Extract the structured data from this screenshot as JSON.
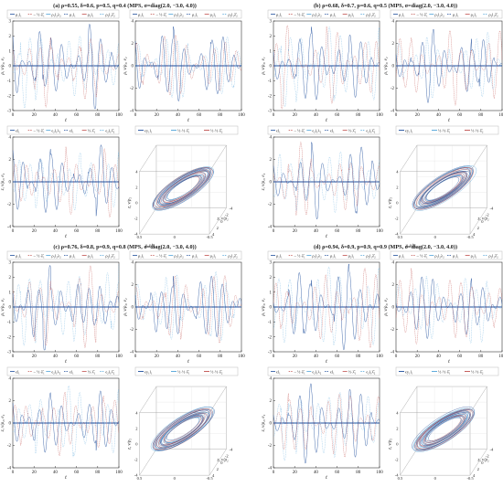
{
  "chart_data": [
    {
      "type": "figure-group",
      "title": "(a) ρ=0.55, δ=0.6, p=0.5, q=0.4 (MPS, σ=diag(2.0, −3.0, 4.0))",
      "panels": [
        {
          "type": "line",
          "xlabel": "t",
          "ylabel": "ρ, ν/ρ₂, e₁",
          "xlim": [
            0,
            100
          ],
          "ylim": [
            -3,
            3
          ],
          "xticks": [
            "0",
            "20",
            "40",
            "60",
            "80",
            "100"
          ],
          "yticks": [
            "3",
            "2",
            "1",
            "0",
            "-1",
            "-2",
            "-3"
          ],
          "legend": [
            "ρ₁l₁",
            "– ½·λ̂₁",
            "ρ₁l₂λ₂",
            "ρ₁l₁",
            "ρ₂l₁",
            "ρ₂l₁λ̂₂"
          ]
        },
        {
          "type": "line",
          "xlabel": "t",
          "ylabel": "ρ, ν/ρ₂, e₂",
          "xlim": [
            0,
            100
          ],
          "ylim": [
            -4,
            4
          ],
          "xticks": [
            "0",
            "20",
            "40",
            "60",
            "80",
            "100"
          ],
          "yticks": [
            "4",
            "2",
            "0",
            "-2",
            "-4"
          ],
          "legend": [
            "ρ₁l₁",
            "– ½·λ̂₁",
            "ρ₁l₂λ₂",
            "ρ₁l₁",
            "ρ₂l₁",
            "ρ₂l₁λ̂₂"
          ]
        },
        {
          "type": "line",
          "xlabel": "t",
          "ylabel": "z, ν/ρ₂, e₃",
          "xlim": [
            0,
            100
          ],
          "ylim": [
            -4,
            4
          ],
          "xticks": [
            "0",
            "20",
            "40",
            "60",
            "80",
            "100"
          ],
          "yticks": [
            "4",
            "2",
            "0",
            "-2",
            "-4"
          ],
          "legend": [
            "ϵl₁",
            "– ½·λ̂₁",
            "ϵ₂l₁λ₂",
            "ϵl₁",
            "½·λ̂₁",
            "ϵ₂l₁λ̂₂"
          ]
        },
        {
          "type": "3d-phase",
          "xlabel": "y, ν/ρ₂",
          "ylabel": "z, ν/ρ₂",
          "zlabel": "z, ν/ρ₂",
          "legend": [
            "ϵy₁l₁",
            "½·½·λ̂₁",
            "½·½·λ̂₂"
          ],
          "x_ticks": [
            "0.5",
            "0",
            "-0.5"
          ],
          "y_ticks": [
            "4",
            "2",
            "0",
            "-2",
            "-4"
          ],
          "z_ticks": [
            "4",
            "2",
            "0",
            "-2",
            "-4"
          ]
        }
      ]
    },
    {
      "type": "figure-group",
      "title": "(b) ρ=0.68, δ=0.7, p=0.6, q=0.5 (MPS, σ=diag(2.0, −3.0, 4.0))",
      "panels": [
        {
          "type": "line",
          "xlabel": "t",
          "ylabel": "ρ, ν/ρ₂, e₁",
          "xlim": [
            0,
            100
          ],
          "ylim": [
            -3,
            3
          ],
          "xticks": [
            "0",
            "20",
            "40",
            "60",
            "80",
            "100"
          ],
          "yticks": [
            "3",
            "2",
            "1",
            "0",
            "-1",
            "-2",
            "-3"
          ],
          "legend": [
            "ρ₁l₁",
            "– ½·λ̂₁",
            "ρ₁l₂λ₂",
            "ρ₁l₁",
            "ρ₂l₁",
            "ρ₂l₁λ̂₂"
          ]
        },
        {
          "type": "line",
          "xlabel": "t",
          "ylabel": "ρ, ν/ρ₂, e₂",
          "xlim": [
            0,
            100
          ],
          "ylim": [
            -4,
            4
          ],
          "xticks": [
            "0",
            "20",
            "40",
            "60",
            "80",
            "100"
          ],
          "yticks": [
            "4",
            "2",
            "0",
            "-2",
            "-4"
          ],
          "legend": [
            "ρ₁l₁",
            "– ½·λ̂₁",
            "ρ₁l₂λ₂",
            "ρ₁l₁",
            "ρ₂l₁",
            "ρ₂l₁λ̂₂"
          ]
        },
        {
          "type": "line",
          "xlabel": "t",
          "ylabel": "z, ν/ρ₂, e₃",
          "xlim": [
            0,
            100
          ],
          "ylim": [
            -4,
            4
          ],
          "xticks": [
            "0",
            "20",
            "40",
            "60",
            "80",
            "100"
          ],
          "yticks": [
            "4",
            "2",
            "0",
            "-2",
            "-4"
          ],
          "legend": [
            "ϵl₁",
            "– ½·λ̂₁",
            "ϵ₂l₁λ₂",
            "ϵl₁",
            "½·λ̂₁",
            "ϵ₂l₁λ̂₂"
          ]
        },
        {
          "type": "3d-phase",
          "xlabel": "y, ν/ρ₂",
          "ylabel": "z, ν/ρ₂",
          "zlabel": "z, ν/ρ₂",
          "legend": [
            "ϵy₁l₁",
            "½·½·λ̂₁",
            "½·½·λ̂₂"
          ],
          "x_ticks": [
            "0.5",
            "0",
            "-0.5"
          ],
          "y_ticks": [
            "4",
            "2",
            "0",
            "-2",
            "-4"
          ],
          "z_ticks": [
            "4",
            "2",
            "0",
            "-2",
            "-4"
          ]
        }
      ]
    },
    {
      "type": "figure-group",
      "title": "(c) ρ=0.76, δ=0.8, p=0.9, q=0.8 (MPS, σ=diag(2.0, −3.0, 4.0))",
      "panels": [
        {
          "type": "line",
          "xlabel": "t",
          "ylabel": "ρ, ν/ρ₂, e₁",
          "xlim": [
            0,
            100
          ],
          "ylim": [
            -3,
            3
          ],
          "xticks": [
            "0",
            "20",
            "40",
            "60",
            "80",
            "100"
          ],
          "yticks": [
            "3",
            "2",
            "1",
            "0",
            "-1",
            "-2",
            "-3"
          ],
          "legend": [
            "ρ₁l₁",
            "– ½·λ̂₁",
            "ρ₁l₂λ₂",
            "ρ₁l₁",
            "ρ₂l₁",
            "ρ₂l₁λ̂₂"
          ]
        },
        {
          "type": "line",
          "xlabel": "t",
          "ylabel": "ρ, ν/ρ₂, e₂",
          "xlim": [
            0,
            100
          ],
          "ylim": [
            -4,
            4
          ],
          "xticks": [
            "0",
            "20",
            "40",
            "60",
            "80",
            "100"
          ],
          "yticks": [
            "4",
            "2",
            "0",
            "-2",
            "-4"
          ],
          "legend": [
            "ρ₁l₁",
            "– ½·λ̂₁",
            "ρ₁l₂λ₂",
            "ρ₁l₁",
            "ρ₂l₁",
            "ρ₂l₁λ̂₂"
          ]
        },
        {
          "type": "line",
          "xlabel": "t",
          "ylabel": "z, ν/ρ₂, e₃",
          "xlim": [
            0,
            100
          ],
          "ylim": [
            -4,
            4
          ],
          "xticks": [
            "0",
            "20",
            "40",
            "60",
            "80",
            "100"
          ],
          "yticks": [
            "4",
            "2",
            "0",
            "-2",
            "-4"
          ],
          "legend": [
            "ϵl₁",
            "– ½·λ̂₁",
            "ϵ₂l₁λ₂",
            "ϵl₁",
            "½·λ̂₁",
            "ϵ₂l₁λ̂₂"
          ]
        },
        {
          "type": "3d-phase",
          "xlabel": "y, ν/ρ₂",
          "ylabel": "z, ν/ρ₂",
          "zlabel": "z, ν/ρ₂",
          "legend": [
            "ϵy₁l₁",
            "½·½·λ̂₁",
            "½·½·λ̂₂"
          ],
          "x_ticks": [
            "0.5",
            "0",
            "-0.5"
          ],
          "y_ticks": [
            "4",
            "2",
            "0",
            "-2",
            "-4"
          ],
          "z_ticks": [
            "4",
            "2",
            "0",
            "-2",
            "-4"
          ]
        }
      ]
    },
    {
      "type": "figure-group",
      "title": "(d) ρ=0.94, δ=0.9, p=0.9, q=0.9 (MPS, σ=diag(2.0, −3.0, 4.0))",
      "panels": [
        {
          "type": "line",
          "xlabel": "t",
          "ylabel": "ρ, ν/ρ₂, e₁",
          "xlim": [
            0,
            100
          ],
          "ylim": [
            -3,
            3
          ],
          "xticks": [
            "0",
            "20",
            "40",
            "60",
            "80",
            "100"
          ],
          "yticks": [
            "3",
            "2",
            "1",
            "0",
            "-1",
            "-2",
            "-3"
          ],
          "legend": [
            "ρ₁l₁",
            "– ½·λ̂₁",
            "ρ₁l₂λ₂",
            "ρ₁l₁",
            "ρ₂l₁",
            "ρ₂l₁λ̂₂"
          ]
        },
        {
          "type": "line",
          "xlabel": "t",
          "ylabel": "ρ, ν/ρ₂, e₂",
          "xlim": [
            0,
            100
          ],
          "ylim": [
            -4,
            4
          ],
          "xticks": [
            "0",
            "20",
            "40",
            "60",
            "80",
            "100"
          ],
          "yticks": [
            "4",
            "2",
            "0",
            "-2",
            "-4"
          ],
          "legend": [
            "ρ₁l₁",
            "– ½·λ̂₁",
            "ρ₁l₂λ₂",
            "ρ₁l₁",
            "ρ₂l₁",
            "ρ₂l₁λ̂₂"
          ]
        },
        {
          "type": "line",
          "xlabel": "t",
          "ylabel": "z, ν/ρ₂, e₃",
          "xlim": [
            0,
            100
          ],
          "ylim": [
            -4,
            4
          ],
          "xticks": [
            "0",
            "20",
            "40",
            "60",
            "80",
            "100"
          ],
          "yticks": [
            "4",
            "2",
            "0",
            "-2",
            "-4"
          ],
          "legend": [
            "ϵl₁",
            "– ½·λ̂₁",
            "ϵ₂l₁λ₂",
            "ϵl₁",
            "½·λ̂₁",
            "ϵ₂l₁λ̂₂"
          ]
        },
        {
          "type": "3d-phase",
          "xlabel": "y, ν/ρ₂",
          "ylabel": "z, ν/ρ₂",
          "zlabel": "z, ν/ρ₂",
          "legend": [
            "ϵy₁l₁",
            "½·½·λ̂₁",
            "½·½·λ̂₂"
          ],
          "x_ticks": [
            "0.5",
            "0",
            "-0.5"
          ],
          "y_ticks": [
            "4",
            "2",
            "0",
            "-2",
            "-4"
          ],
          "z_ticks": [
            "4",
            "2",
            "0",
            "-2",
            "-4"
          ]
        }
      ]
    }
  ],
  "colors": {
    "primary": "#1f4e9c",
    "secondary": "#c0504d",
    "tertiary": "#4fa3d9",
    "axis": "#333333",
    "frame": "#999999"
  }
}
